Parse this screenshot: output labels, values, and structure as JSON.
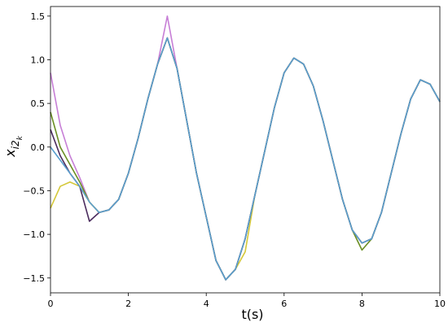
{
  "chart_data": {
    "type": "line",
    "xlabel": "t(s)",
    "ylabel": "x",
    "ylabel_sub": "i2",
    "ylabel_subsub": "k",
    "x": [
      0,
      0.25,
      0.5,
      0.75,
      1,
      1.25,
      1.5,
      1.75,
      2,
      2.25,
      2.5,
      2.75,
      3,
      3.25,
      3.5,
      3.75,
      4,
      4.25,
      4.5,
      4.75,
      5,
      5.25,
      5.5,
      5.75,
      6,
      6.25,
      6.5,
      6.75,
      7,
      7.25,
      7.5,
      7.75,
      8,
      8.25,
      8.5,
      8.75,
      9,
      9.25,
      9.5,
      9.75,
      10
    ],
    "series": [
      {
        "color": "#c77fd6",
        "values": [
          0.85,
          0.25,
          -0.1,
          -0.35,
          -0.63,
          -0.75,
          -0.72,
          -0.6,
          -0.3,
          0.1,
          0.55,
          0.95,
          1.5,
          0.9,
          0.3,
          -0.3,
          -0.8,
          -1.3,
          -1.52,
          -1.4,
          -1.05,
          -0.55,
          -0.05,
          0.45,
          0.85,
          1.02,
          0.95,
          0.7,
          0.3,
          -0.15,
          -0.6,
          -0.95,
          -1.1,
          -1.05,
          -0.75,
          -0.3,
          0.15,
          0.55,
          0.77,
          0.72,
          0.52
        ]
      },
      {
        "color": "#6b8e23",
        "values": [
          0.4,
          0.0,
          -0.2,
          -0.4,
          -0.63,
          -0.75,
          -0.72,
          -0.6,
          -0.3,
          0.1,
          0.55,
          0.95,
          1.25,
          0.9,
          0.3,
          -0.3,
          -0.8,
          -1.3,
          -1.52,
          -1.4,
          -1.05,
          -0.55,
          -0.05,
          0.45,
          0.85,
          1.02,
          0.95,
          0.7,
          0.3,
          -0.15,
          -0.6,
          -0.95,
          -1.18,
          -1.05,
          -0.75,
          -0.3,
          0.15,
          0.55,
          0.77,
          0.72,
          0.52
        ]
      },
      {
        "color": "#d4c83a",
        "values": [
          -0.7,
          -0.45,
          -0.4,
          -0.45,
          -0.63,
          -0.75,
          -0.72,
          -0.6,
          -0.3,
          0.1,
          0.55,
          0.95,
          1.25,
          0.9,
          0.3,
          -0.3,
          -0.8,
          -1.3,
          -1.52,
          -1.4,
          -1.2,
          -0.55,
          -0.05,
          0.45,
          0.85,
          1.02,
          0.95,
          0.7,
          0.3,
          -0.15,
          -0.6,
          -0.95,
          -1.1,
          -1.05,
          -0.75,
          -0.3,
          0.15,
          0.55,
          0.77,
          0.72,
          0.52
        ]
      },
      {
        "color": "#4b2c5e",
        "values": [
          0.2,
          -0.1,
          -0.3,
          -0.45,
          -0.85,
          -0.75,
          -0.72,
          -0.6,
          -0.3,
          0.1,
          0.55,
          0.95,
          1.25,
          0.9,
          0.3,
          -0.3,
          -0.8,
          -1.3,
          -1.52,
          -1.4,
          -1.05,
          -0.55,
          -0.05,
          0.45,
          0.85,
          1.02,
          0.95,
          0.7,
          0.3,
          -0.15,
          -0.6,
          -0.95,
          -1.1,
          -1.05,
          -0.75,
          -0.3,
          0.15,
          0.55,
          0.77,
          0.72,
          0.52
        ]
      },
      {
        "color": "#5a9fcf",
        "values": [
          0.0,
          -0.15,
          -0.3,
          -0.45,
          -0.63,
          -0.75,
          -0.72,
          -0.6,
          -0.3,
          0.1,
          0.55,
          0.95,
          1.25,
          0.9,
          0.3,
          -0.3,
          -0.8,
          -1.3,
          -1.52,
          -1.4,
          -1.05,
          -0.55,
          -0.05,
          0.45,
          0.85,
          1.02,
          0.95,
          0.7,
          0.3,
          -0.15,
          -0.6,
          -0.95,
          -1.1,
          -1.05,
          -0.75,
          -0.3,
          0.15,
          0.55,
          0.77,
          0.72,
          0.52
        ]
      }
    ],
    "xlim": [
      0,
      10
    ],
    "xticks": [
      0,
      2,
      4,
      6,
      8,
      10
    ],
    "ylim": [
      -1.67,
      1.61
    ],
    "yticks": [
      {
        "value": -1.5,
        "label": "−1.5"
      },
      {
        "value": -1,
        "label": "−1.0"
      },
      {
        "value": -0.5,
        "label": "−0.5"
      },
      {
        "value": 0,
        "label": "0.0"
      },
      0.5,
      {
        "value": 1,
        "label": "1.0"
      },
      1.5
    ]
  }
}
